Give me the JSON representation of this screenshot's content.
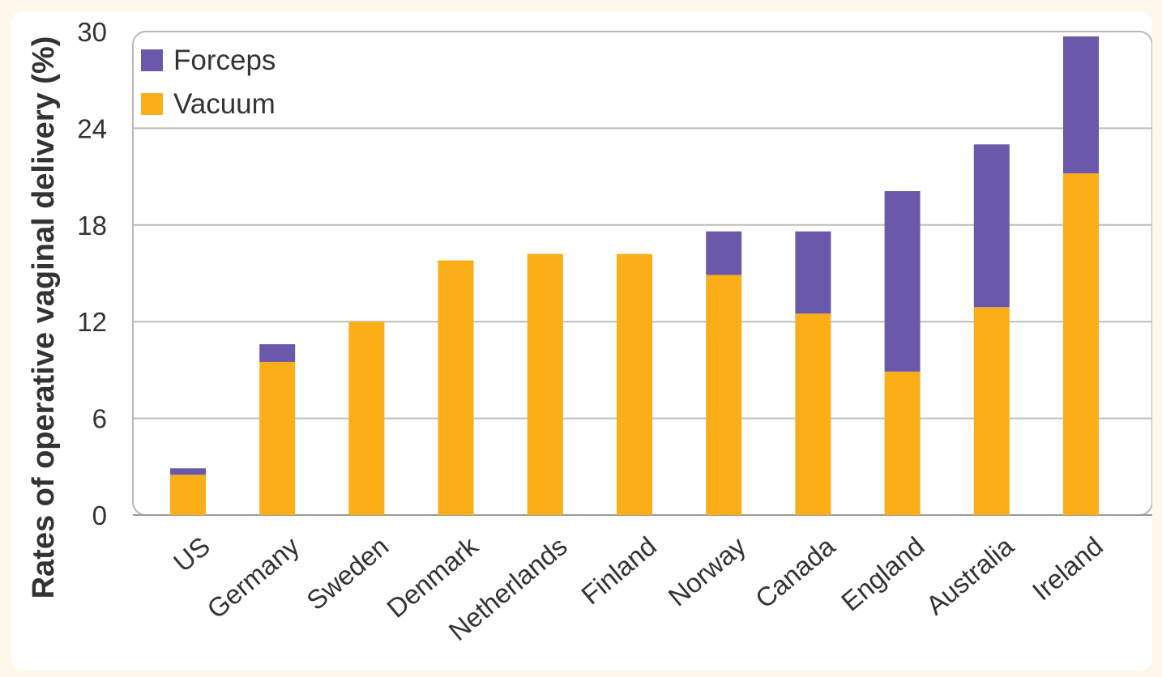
{
  "chart_data": {
    "type": "bar",
    "stacked": true,
    "ylabel": "Rates of operative vaginal delivery (%)",
    "xlabel": "",
    "ylim": [
      0,
      30
    ],
    "yticks": [
      0,
      6,
      12,
      18,
      24,
      30
    ],
    "grid": true,
    "legend_position": "top-left",
    "categories": [
      "US",
      "Germany",
      "Sweden",
      "Denmark",
      "Netherlands",
      "Finland",
      "Norway",
      "Canada",
      "England",
      "Australia",
      "Ireland"
    ],
    "series": [
      {
        "name": "Vacuum",
        "color": "#fbae17",
        "values": [
          2.5,
          9.5,
          12.0,
          15.8,
          16.2,
          16.2,
          14.9,
          12.5,
          8.9,
          12.9,
          21.2
        ]
      },
      {
        "name": "Forceps",
        "color": "#6a59aa",
        "values": [
          0.4,
          1.1,
          0.0,
          0.0,
          0.0,
          0.0,
          2.7,
          5.1,
          11.2,
          10.1,
          8.5
        ]
      }
    ],
    "legend_order": [
      "Forceps",
      "Vacuum"
    ]
  }
}
